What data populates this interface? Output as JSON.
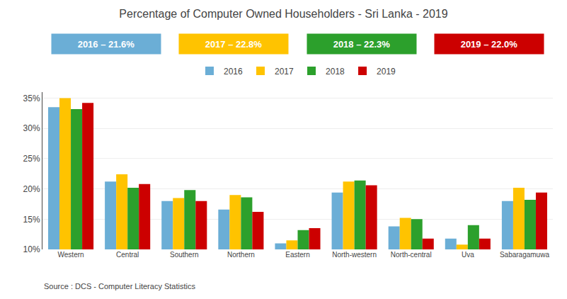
{
  "chart_data": {
    "type": "bar",
    "title": "Percentage of Computer Owned Householders - Sri Lanka - 2019",
    "categories": [
      "Western",
      "Central",
      "Southern",
      "Northern",
      "Eastern",
      "North-western",
      "North-central",
      "Uva",
      "Sabaragamuwa"
    ],
    "series": [
      {
        "name": "2016",
        "color": "#6baed6",
        "values": [
          33.5,
          21.2,
          18.0,
          16.6,
          11.0,
          19.4,
          13.8,
          11.8,
          18.0
        ]
      },
      {
        "name": "2017",
        "color": "#ffc300",
        "values": [
          35.0,
          22.4,
          18.5,
          19.0,
          11.5,
          21.2,
          15.2,
          10.8,
          20.2
        ]
      },
      {
        "name": "2018",
        "color": "#2ca02c",
        "values": [
          33.2,
          20.2,
          19.8,
          18.6,
          13.2,
          21.4,
          15.0,
          14.0,
          18.2
        ]
      },
      {
        "name": "2019",
        "color": "#cc0000",
        "values": [
          34.2,
          20.8,
          18.0,
          16.2,
          13.5,
          20.6,
          11.8,
          11.8,
          19.4
        ]
      }
    ],
    "annotations": [
      "2016 – 21.6%",
      "2017 – 22.8%",
      "2018 – 22.3%",
      "2019 – 22.0%",
      "Source : DCS - Computer Literacy Statistics"
    ],
    "ylim": [
      10,
      36
    ],
    "yticks": [
      {
        "value": 10,
        "label": "10%"
      },
      {
        "value": 15,
        "label": "15%"
      },
      {
        "value": 20,
        "label": "20%"
      },
      {
        "value": 25,
        "label": "25%"
      },
      {
        "value": 30,
        "label": "30%"
      },
      {
        "value": 35,
        "label": "35%"
      }
    ],
    "grid": true,
    "legend": "top"
  }
}
